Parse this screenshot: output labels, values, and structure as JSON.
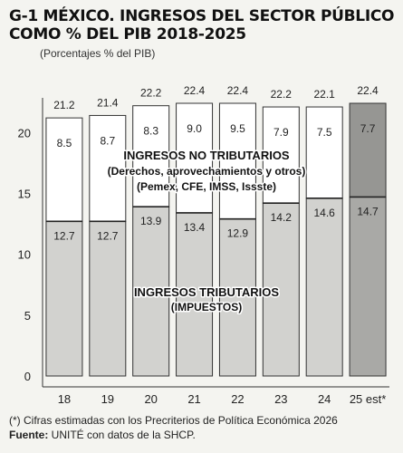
{
  "header": {
    "title_line1": "G-1 MÉXICO. INGRESOS DEL SECTOR PÚBLICO",
    "title_line2": "COMO % DEL PIB 2018-2025",
    "subtitle": "(Porcentajes % del PIB)"
  },
  "chart_data": {
    "type": "bar",
    "stacked": true,
    "categories": [
      "18",
      "19",
      "20",
      "21",
      "22",
      "23",
      "24",
      "25 est*"
    ],
    "series": [
      {
        "name": "INGRESOS TRIBUTARIOS (IMPUESTOS)",
        "values": [
          12.7,
          12.7,
          13.9,
          13.4,
          12.9,
          14.2,
          14.6,
          14.7
        ]
      },
      {
        "name": "INGRESOS NO TRIBUTARIOS (Derechos, aprovechamientos y otros) (Pemex, CFE, IMSS, Issste)",
        "values": [
          8.5,
          8.7,
          8.3,
          9.0,
          9.5,
          7.9,
          7.5,
          7.7
        ]
      }
    ],
    "totals": [
      21.2,
      21.4,
      22.2,
      22.4,
      22.4,
      22.2,
      22.1,
      22.4
    ],
    "series_labels": {
      "no_tributarios": [
        "INGRESOS NO TRIBUTARIOS",
        "(Derechos, aprovechamientos y otros)",
        "(Pemex, CFE, IMSS, Issste)"
      ],
      "tributarios": [
        "INGRESOS TRIBUTARIOS",
        "(IMPUESTOS)"
      ]
    },
    "yticks": [
      0,
      5,
      10,
      15,
      20
    ],
    "ylim": [
      0,
      22.4
    ],
    "grid": false,
    "colors": {
      "tributarios": "#d2d2cf",
      "no_tributarios": "#ffffff",
      "tributarios_est": "#a9a9a6",
      "no_tributarios_est": "#969693",
      "axis": "#333333"
    }
  },
  "footnote": {
    "note": "(*) Cifras estimadas con los Precriterios de Política Económica 2026",
    "source_label": "Fuente:",
    "source_text": " UNITÉ con datos de la SHCP."
  }
}
